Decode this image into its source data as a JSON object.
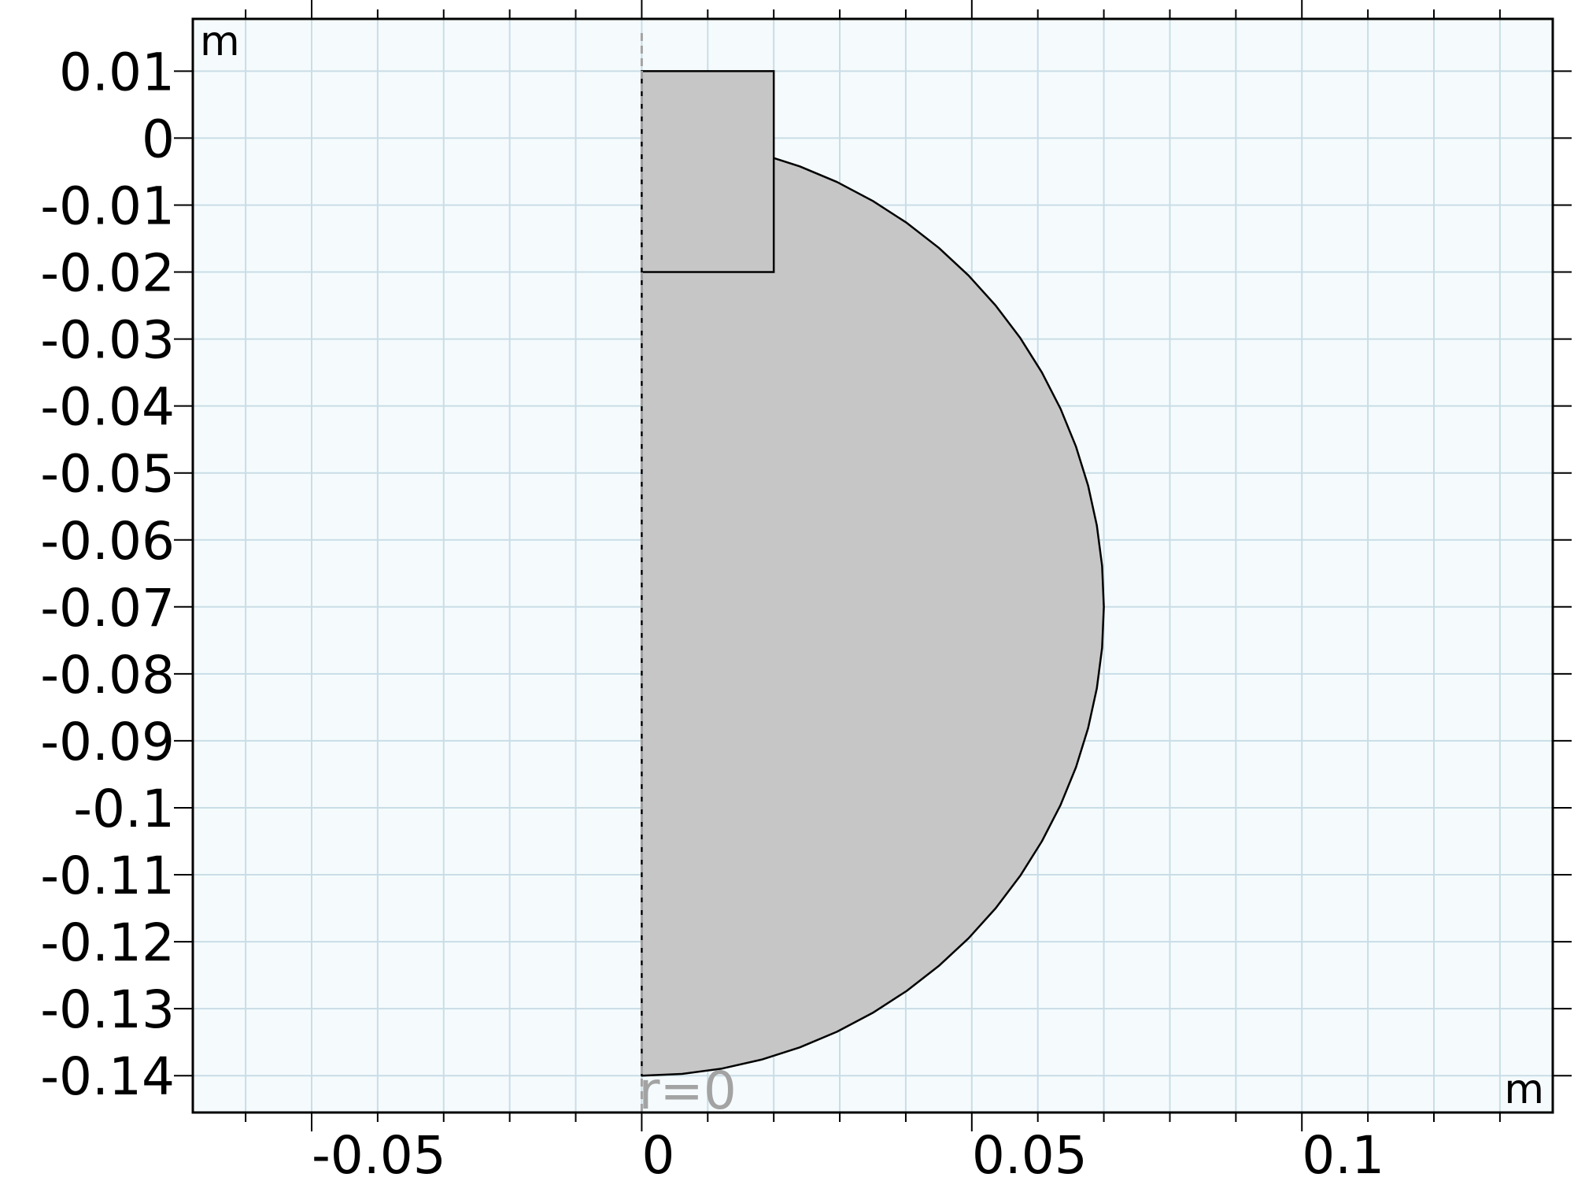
{
  "plot": {
    "x_unit": "m",
    "y_unit": "m",
    "axis_symmetry_label": "r=0",
    "x_range": [
      -0.068,
      0.138
    ],
    "y_range": [
      -0.1455,
      0.0178
    ],
    "x_ticks": [
      {
        "value": -0.05,
        "label": "-0.05"
      },
      {
        "value": 0,
        "label": "0"
      },
      {
        "value": 0.05,
        "label": "0.05"
      },
      {
        "value": 0.1,
        "label": "0.1"
      }
    ],
    "x_minor_step": 0.01,
    "y_ticks": [
      {
        "value": 0.01,
        "label": "0.01"
      },
      {
        "value": 0,
        "label": "0"
      },
      {
        "value": -0.01,
        "label": "-0.01"
      },
      {
        "value": -0.02,
        "label": "-0.02"
      },
      {
        "value": -0.03,
        "label": "-0.03"
      },
      {
        "value": -0.04,
        "label": "-0.04"
      },
      {
        "value": -0.05,
        "label": "-0.05"
      },
      {
        "value": -0.06,
        "label": "-0.06"
      },
      {
        "value": -0.07,
        "label": "-0.07"
      },
      {
        "value": -0.08,
        "label": "-0.08"
      },
      {
        "value": -0.09,
        "label": "-0.09"
      },
      {
        "value": -0.1,
        "label": "-0.1"
      },
      {
        "value": -0.11,
        "label": "-0.11"
      },
      {
        "value": -0.12,
        "label": "-0.12"
      },
      {
        "value": -0.13,
        "label": "-0.13"
      },
      {
        "value": -0.14,
        "label": "-0.14"
      }
    ],
    "colors": {
      "background": "#f5fbfd",
      "grid": "#c9dde6",
      "domain_fill": "#c6c6c6",
      "edge": "#000000",
      "axis_line": "#a3a3a3"
    }
  },
  "geometry": {
    "rectangle": {
      "r_min": 0,
      "r_max": 0.02,
      "z_min": -0.02,
      "z_max": 0.01
    },
    "half_circle": {
      "center_r": 0,
      "center_z": -0.07,
      "radius": 0.07,
      "segments": 36
    }
  }
}
